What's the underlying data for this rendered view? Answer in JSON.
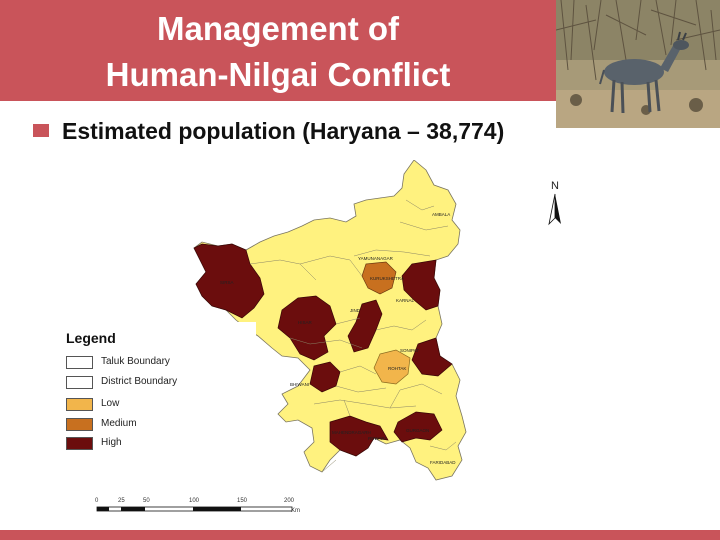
{
  "slide": {
    "title_line1": "Management of",
    "title_line2": "Human-Nilgai Conflict",
    "bullet": "Estimated population (Haryana – 38,774)"
  },
  "colors": {
    "title_band": "#c9545a",
    "low": "#f2b54b",
    "medium": "#c8701f",
    "high": "#6b0d0d",
    "base": "#fff27f"
  },
  "map": {
    "north_label": "N",
    "district_labels": {
      "ambala": "AMBALA",
      "yamunanagar": "YAMUNANAGAR",
      "kurukshetra": "KURUKSHETRA",
      "kaithal": "KAITHAL",
      "karnal": "KARNAL",
      "jind": "JIND",
      "hisar": "HISAR",
      "sirsa": "SIRSA",
      "panipat": "PANIPAT",
      "sonipat": "SONIPAT",
      "rohtak": "ROHTAK",
      "bhiwani": "BHIWANI",
      "mahendragarh": "MAHENDRAGARH",
      "rewari": "REWARI",
      "gurgaon": "GURGAON",
      "faridabad": "FARIDABAD"
    },
    "legend": {
      "title": "Legend",
      "items": [
        {
          "label": "Taluk Boundary",
          "color": "#ffffff"
        },
        {
          "label": "District Boundary",
          "color": "#ffffff"
        },
        {
          "label": "Low",
          "color": "#f2b54b"
        },
        {
          "label": "Medium",
          "color": "#c8701f"
        },
        {
          "label": "High",
          "color": "#6b0d0d"
        }
      ]
    },
    "scale": {
      "ticks": [
        "0",
        "25",
        "50",
        "100",
        "150",
        "200"
      ],
      "unit": "Km"
    }
  }
}
